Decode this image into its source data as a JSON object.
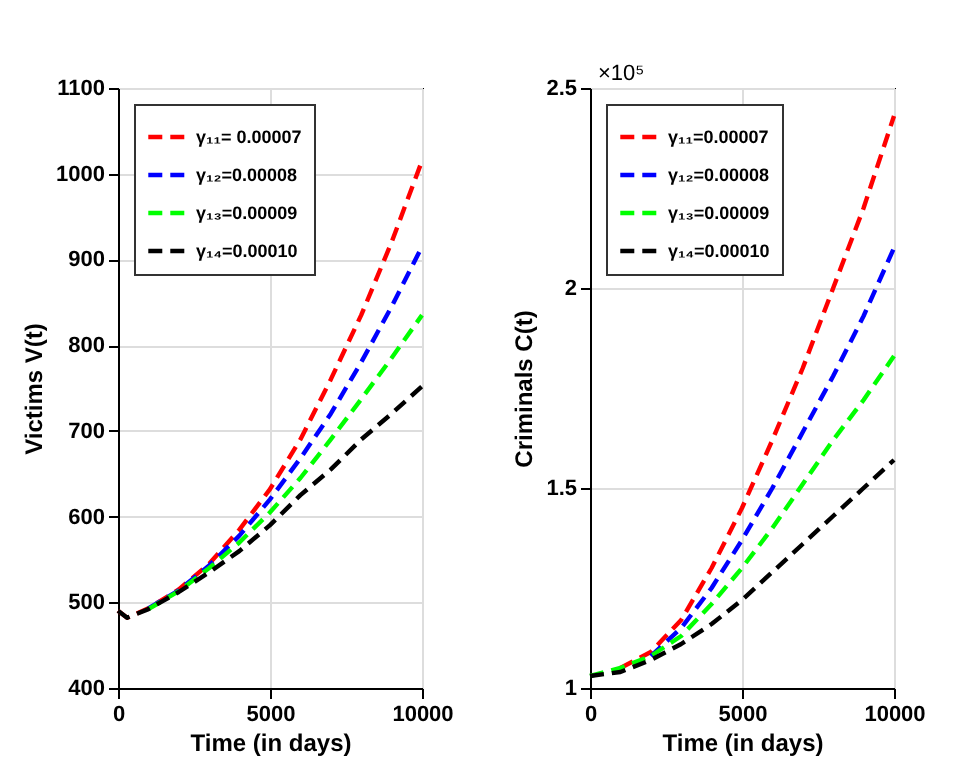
{
  "chart_data": [
    {
      "type": "line",
      "xlabel": "Time (in days)",
      "ylabel": "Victims V(t)",
      "xlim": [
        0,
        10000
      ],
      "xticks": [
        0,
        5000,
        10000
      ],
      "ylim": [
        400,
        1100
      ],
      "yticks": [
        400,
        500,
        600,
        700,
        800,
        900,
        1000,
        1100
      ],
      "grid": true,
      "legend": "top left",
      "line_style": "dashed",
      "x": [
        0,
        300,
        1000,
        2000,
        3000,
        4000,
        5000,
        6000,
        7000,
        8000,
        9000,
        10000
      ],
      "series": [
        {
          "name": "γ₁₁= 0.00007",
          "color": "#ff0000",
          "values": [
            490,
            482,
            493,
            515,
            545,
            585,
            632,
            690,
            760,
            835,
            920,
            1015
          ]
        },
        {
          "name": "γ₁₂=0.00008",
          "color": "#0000ff",
          "values": [
            null,
            null,
            493,
            514,
            543,
            578,
            620,
            668,
            720,
            780,
            845,
            915
          ]
        },
        {
          "name": "γ₁₃=0.00009",
          "color": "#00ff00",
          "values": [
            null,
            null,
            492,
            513,
            540,
            570,
            605,
            645,
            690,
            737,
            785,
            835
          ]
        },
        {
          "name": "γ₁₄=0.00010",
          "color": "#000000",
          "values": [
            490,
            482,
            492,
            512,
            535,
            560,
            590,
            625,
            655,
            690,
            720,
            752
          ]
        }
      ]
    },
    {
      "type": "line",
      "xlabel": "Time (in days)",
      "ylabel": "Criminals C(t)",
      "annotations": [
        "×10⁵"
      ],
      "xlim": [
        0,
        10000
      ],
      "xticks": [
        0,
        5000,
        10000
      ],
      "ylim": [
        1,
        2.5
      ],
      "yticks": [
        1,
        1.5,
        2,
        2.5
      ],
      "grid": true,
      "legend": "top left",
      "line_style": "dashed",
      "x": [
        0,
        1000,
        2000,
        3000,
        4000,
        5000,
        6000,
        7000,
        8000,
        9000,
        10000
      ],
      "series": [
        {
          "name": "γ₁₁=0.00007",
          "color": "#ff0000",
          "values": [
            null,
            1.05,
            1.09,
            1.17,
            1.3,
            1.45,
            1.62,
            1.8,
            2.0,
            2.2,
            2.43
          ]
        },
        {
          "name": "γ₁₂=0.00008",
          "color": "#0000ff",
          "values": [
            null,
            null,
            1.08,
            1.15,
            1.25,
            1.37,
            1.5,
            1.64,
            1.78,
            1.93,
            2.1
          ]
        },
        {
          "name": "γ₁₃=0.00009",
          "color": "#00ff00",
          "values": [
            1.03,
            1.05,
            1.08,
            1.13,
            1.21,
            1.3,
            1.4,
            1.51,
            1.62,
            1.72,
            1.83
          ]
        },
        {
          "name": "γ₁₄=0.00010",
          "color": "#000000",
          "values": [
            1.03,
            1.04,
            1.07,
            1.11,
            1.16,
            1.22,
            1.29,
            1.36,
            1.43,
            1.5,
            1.57
          ]
        }
      ]
    }
  ]
}
